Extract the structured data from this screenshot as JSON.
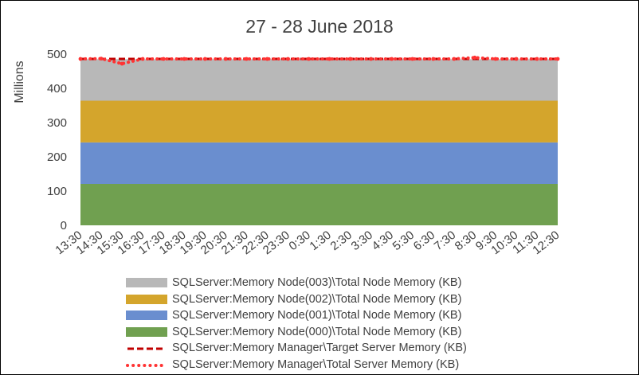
{
  "chart_data": {
    "type": "area",
    "title": "27 - 28 June 2018",
    "ylabel": "Millions",
    "xlabel": "",
    "ylim": [
      0,
      500
    ],
    "yticks": [
      0,
      100,
      200,
      300,
      400,
      500
    ],
    "grid": false,
    "legend_position": "bottom",
    "categories": [
      "13:30",
      "14:30",
      "15:30",
      "16:30",
      "17:30",
      "18:30",
      "19:30",
      "20:30",
      "21:30",
      "22:30",
      "23:30",
      "0:30",
      "1:30",
      "2:30",
      "3:30",
      "4:30",
      "5:30",
      "6:30",
      "7:30",
      "8:30",
      "9:30",
      "10:30",
      "11:30",
      "12:30"
    ],
    "stacked_series": [
      {
        "name": "SQLServer:Memory Node(000)\\Total Node Memory (KB)",
        "color": "#70a050",
        "values": [
          121,
          121,
          121,
          121,
          121,
          121,
          121,
          121,
          121,
          121,
          121,
          121,
          121,
          121,
          121,
          121,
          121,
          121,
          121,
          121,
          121,
          121,
          121,
          121
        ]
      },
      {
        "name": "SQLServer:Memory Node(001)\\Total Node Memory (KB)",
        "color": "#6a8ecf",
        "values": [
          121,
          121,
          121,
          121,
          121,
          121,
          121,
          121,
          121,
          121,
          121,
          121,
          121,
          121,
          121,
          121,
          121,
          121,
          121,
          121,
          121,
          121,
          121,
          121
        ]
      },
      {
        "name": "SQLServer:Memory Node(002)\\Total Node Memory (KB)",
        "color": "#d4a52c",
        "values": [
          122,
          122,
          122,
          122,
          122,
          122,
          122,
          122,
          122,
          122,
          122,
          122,
          122,
          122,
          122,
          122,
          122,
          122,
          122,
          122,
          122,
          122,
          122,
          122
        ]
      },
      {
        "name": "SQLServer:Memory Node(003)\\Total Node Memory (KB)",
        "color": "#b8b8b8",
        "values": [
          121,
          121,
          121,
          121,
          121,
          121,
          121,
          121,
          121,
          121,
          121,
          121,
          121,
          121,
          121,
          121,
          121,
          121,
          121,
          121,
          121,
          121,
          121,
          121
        ]
      }
    ],
    "line_series": [
      {
        "name": "SQLServer:Memory Manager\\Target Server Memory (KB)",
        "color": "#c00000",
        "style": "dashed",
        "values": [
          486,
          486,
          486,
          486,
          486,
          486,
          486,
          486,
          486,
          486,
          486,
          486,
          486,
          486,
          486,
          486,
          486,
          486,
          486,
          486,
          486,
          486,
          486,
          486
        ]
      },
      {
        "name": "SQLServer:Memory Manager\\Total Server Memory (KB)",
        "color": "#ff3333",
        "style": "dotted",
        "values": [
          486,
          487,
          472,
          486,
          486,
          486,
          486,
          486,
          486,
          486,
          486,
          486,
          486,
          486,
          486,
          486,
          486,
          486,
          486,
          490,
          486,
          486,
          486,
          486
        ]
      }
    ],
    "legend_order": [
      3,
      2,
      1,
      0,
      "line0",
      "line1"
    ]
  }
}
